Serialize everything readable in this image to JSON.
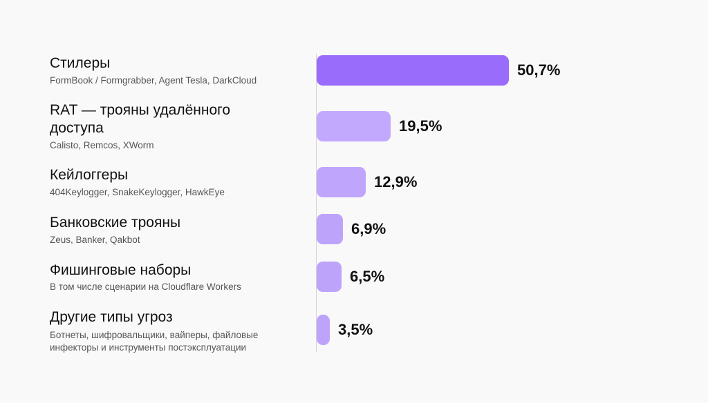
{
  "chart_data": {
    "type": "bar",
    "orientation": "horizontal",
    "unit": "%",
    "xlim": [
      0,
      50.7
    ],
    "categories": [
      {
        "title": "Стилеры",
        "subtitle": "FormBook / Formgrabber, Agent Tesla, DarkCloud"
      },
      {
        "title": "RAT — трояны удалённого доступа",
        "subtitle": "Calisto, Remcos, XWorm"
      },
      {
        "title": "Кейлоггеры",
        "subtitle": "404Keylogger, SnakeKeylogger, HawkEye"
      },
      {
        "title": "Банковские трояны",
        "subtitle": "Zeus, Banker, Qakbot"
      },
      {
        "title": "Фишинговые наборы",
        "subtitle": "В том числе сценарии на Cloudflare Workers"
      },
      {
        "title": "Другие типы угроз",
        "subtitle": "Ботнеты, шифровальщики, вайперы, файловые инфекторы и инструменты постэксплуатации"
      }
    ],
    "values": [
      50.7,
      19.5,
      12.9,
      6.9,
      6.5,
      3.5
    ],
    "value_labels": [
      "50,7%",
      "19,5%",
      "12,9%",
      "6,9%",
      "6,5%",
      "3,5%"
    ],
    "colors": [
      "#9a6cfb",
      "#c3a9fd",
      "#c0a5fc",
      "#bea3fb",
      "#bea3fb",
      "#bea3fb"
    ],
    "grid": false,
    "legend": "none"
  }
}
